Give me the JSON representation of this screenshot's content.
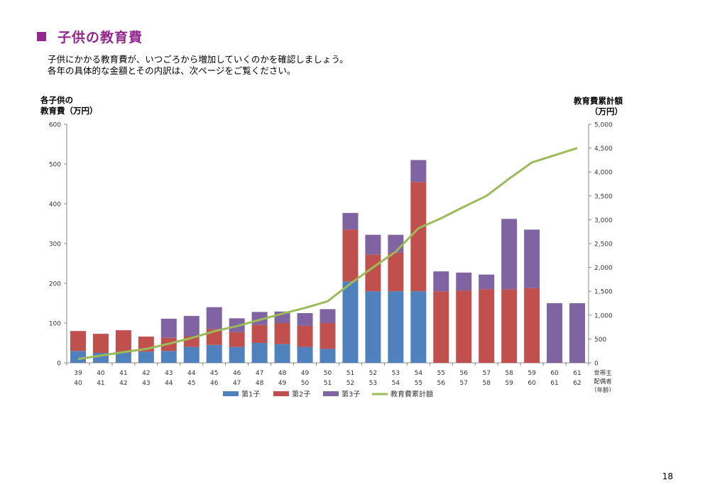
{
  "page": {
    "title": "子供の教育費",
    "intro_lines": [
      "子供にかかる教育費が、いつごろから増加していくのかを確認しましょう。",
      "各年の具体的な金額とその内訳は、次ページをご覧ください。"
    ],
    "page_number": "18"
  },
  "colors": {
    "title": "#92278f",
    "child1": "#4f81bd",
    "child2": "#c0504d",
    "child3": "#8064a2",
    "cumulative": "#9bbb59",
    "axis": "#888888"
  },
  "chart_data": {
    "type": "bar",
    "stacked": true,
    "ylabel_left": [
      "各子供の",
      "教育費（万円）"
    ],
    "ylabel_right": [
      "教育費累計額",
      "（万円）"
    ],
    "xlabel": [
      "世帯主",
      "配偶者",
      "（年齢）"
    ],
    "ylim_left": [
      0,
      600
    ],
    "ylim_right": [
      0,
      5000
    ],
    "yticks_left": [
      "0",
      "100",
      "200",
      "300",
      "400",
      "500",
      "600"
    ],
    "yticks_right": [
      "0",
      "500",
      "1,000",
      "1,500",
      "2,000",
      "2,500",
      "3,000",
      "3,500",
      "4,000",
      "4,500",
      "5,000"
    ],
    "categories_head": [
      "39",
      "40",
      "41",
      "42",
      "43",
      "44",
      "45",
      "46",
      "47",
      "48",
      "49",
      "50",
      "51",
      "52",
      "53",
      "54",
      "55",
      "56",
      "57",
      "58",
      "59",
      "60",
      "61"
    ],
    "categories_spouse": [
      "40",
      "41",
      "42",
      "43",
      "44",
      "45",
      "46",
      "47",
      "48",
      "49",
      "50",
      "51",
      "52",
      "53",
      "54",
      "55",
      "56",
      "57",
      "58",
      "59",
      "60",
      "61",
      "62"
    ],
    "series": [
      {
        "name": "第1子",
        "color_key": "child1",
        "values": [
          30,
          25,
          25,
          28,
          30,
          40,
          45,
          40,
          50,
          47,
          40,
          35,
          205,
          180,
          180,
          180,
          0,
          0,
          0,
          0,
          0,
          0,
          0
        ]
      },
      {
        "name": "第2子",
        "color_key": "child2",
        "values": [
          50,
          48,
          57,
          38,
          33,
          27,
          40,
          37,
          45,
          53,
          53,
          65,
          130,
          92,
          97,
          275,
          180,
          182,
          185,
          185,
          188,
          0,
          0
        ]
      },
      {
        "name": "第3子",
        "color_key": "child3",
        "values": [
          0,
          0,
          0,
          0,
          48,
          51,
          55,
          35,
          33,
          29,
          32,
          35,
          42,
          50,
          45,
          55,
          50,
          45,
          37,
          177,
          147,
          150,
          150
        ]
      }
    ],
    "line": {
      "name": "教育費累計額",
      "color_key": "cumulative",
      "axis": "right",
      "values": [
        80,
        150,
        225,
        290,
        400,
        520,
        660,
        770,
        900,
        1030,
        1150,
        1290,
        1660,
        2000,
        2330,
        2820,
        3030,
        3270,
        3500,
        3860,
        4200,
        4350,
        4500
      ]
    },
    "legend_position": "bottom"
  }
}
